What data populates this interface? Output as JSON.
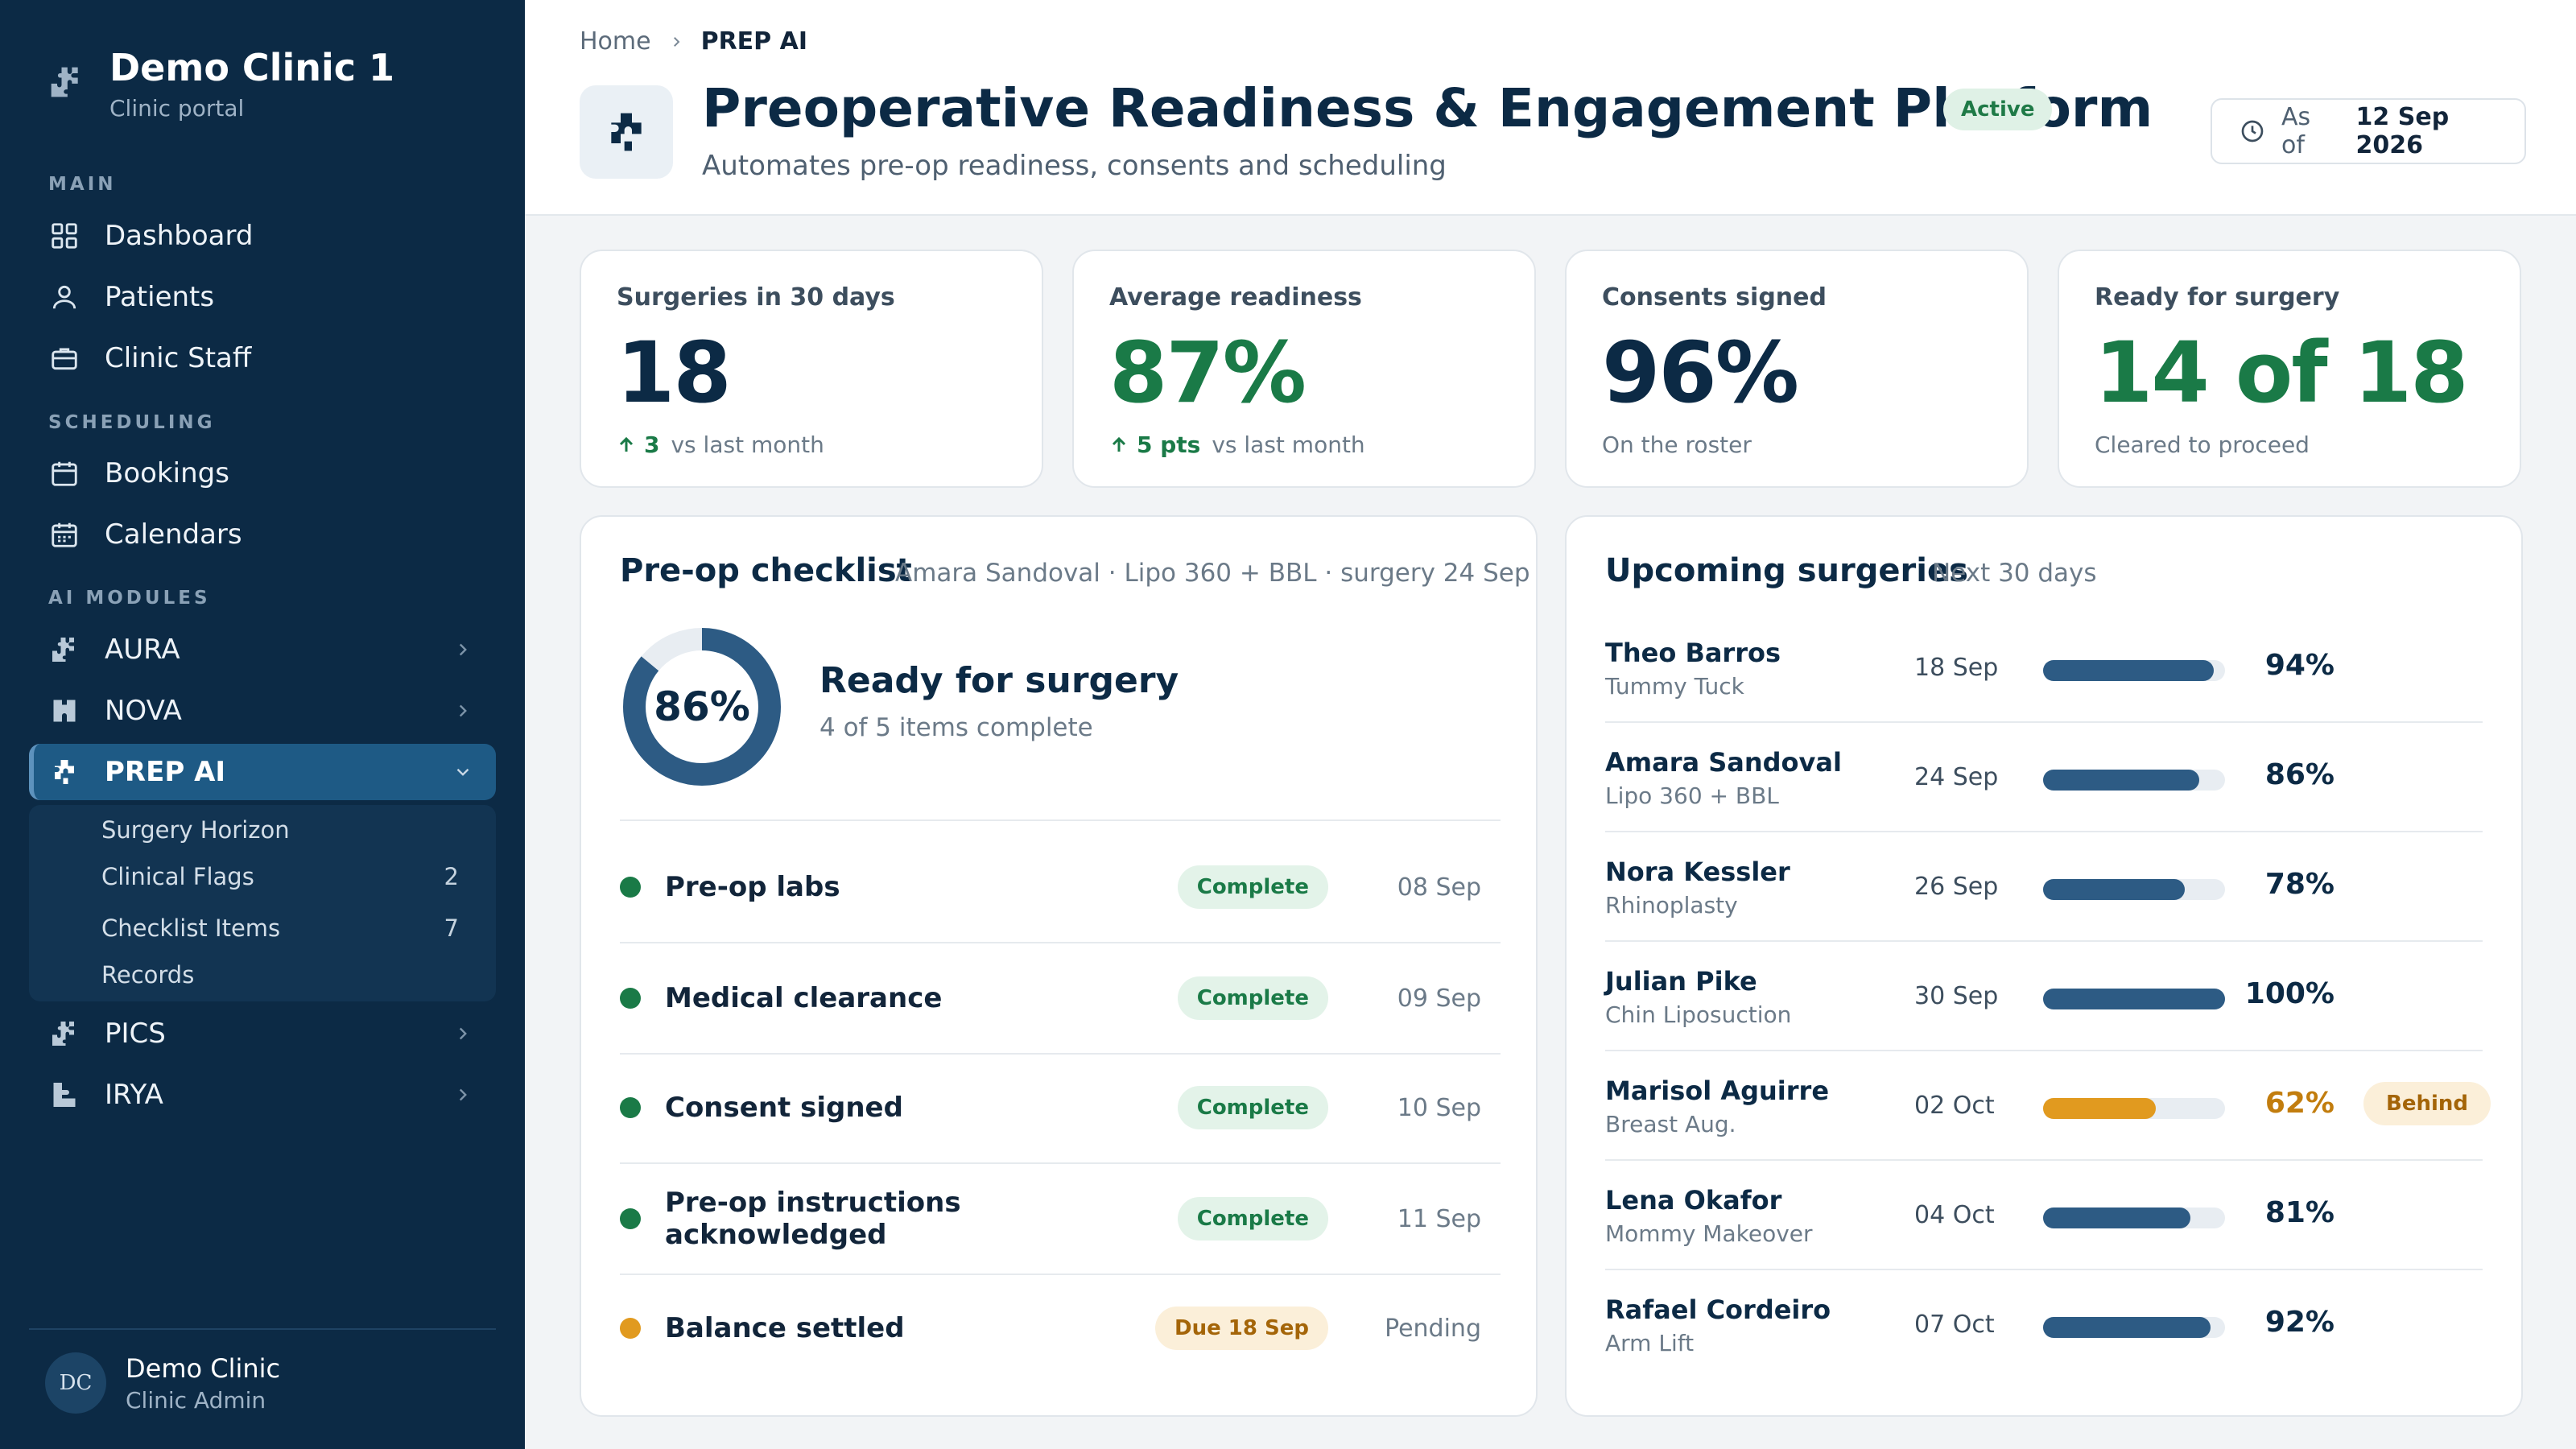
{
  "sidebar": {
    "brand_title": "Demo Clinic 1",
    "brand_sub": "Clinic portal",
    "sections": {
      "main": "MAIN",
      "scheduling": "SCHEDULING",
      "ai": "AI MODULES"
    },
    "items": {
      "dashboard": "Dashboard",
      "patients": "Patients",
      "staff": "Clinic Staff",
      "bookings": "Bookings",
      "calendars": "Calendars",
      "aura": "AURA",
      "nova": "NOVA",
      "prep": "PREP AI",
      "pics": "PICS",
      "irya": "IRYA"
    },
    "sub_items": [
      {
        "label": "Surgery Horizon",
        "count": ""
      },
      {
        "label": "Clinical Flags",
        "count": "2"
      },
      {
        "label": "Checklist Items",
        "count": "7"
      },
      {
        "label": "Records",
        "count": ""
      }
    ],
    "user": {
      "initials": "DC",
      "name": "Demo Clinic",
      "role": "Clinic Admin"
    }
  },
  "header": {
    "breadcrumb_home": "Home",
    "breadcrumb_current": "PREP AI",
    "title": "Preoperative Readiness & Engagement Platform",
    "badge": "Active",
    "subtitle": "Automates pre-op readiness, consents and scheduling",
    "asof_label": "As of",
    "asof_date": "12 Sep 2026"
  },
  "stats": [
    {
      "label": "Surgeries in 30 days",
      "value": "18",
      "delta": "3",
      "foot": "vs last month"
    },
    {
      "label": "Average readiness",
      "value": "87%",
      "delta": "5 pts",
      "foot": "vs last month"
    },
    {
      "label": "Consents signed",
      "value": "96%",
      "delta": "",
      "foot": "On the roster"
    },
    {
      "label": "Ready for surgery",
      "value": "14 of 18",
      "delta": "",
      "foot": "Cleared to proceed"
    }
  ],
  "checklist": {
    "title": "Pre-op checklist",
    "context": "Amara Sandoval · Lipo 360 + BBL · surgery 24 Sep",
    "progress": 0.86,
    "progress_text": "86%",
    "status_title": "Ready for surgery",
    "status_sub": "4 of 5 items complete",
    "items": [
      {
        "label": "Pre-op labs",
        "status": "Complete",
        "date": "08 Sep",
        "state": "ok"
      },
      {
        "label": "Medical clearance",
        "status": "Complete",
        "date": "09 Sep",
        "state": "ok"
      },
      {
        "label": "Consent signed",
        "status": "Complete",
        "date": "10 Sep",
        "state": "ok"
      },
      {
        "label": "Pre-op instructions acknowledged",
        "status": "Complete",
        "date": "11 Sep",
        "state": "ok"
      },
      {
        "label": "Balance settled",
        "status": "Due 18 Sep",
        "date": "Pending",
        "state": "due"
      }
    ]
  },
  "upcoming": {
    "title": "Upcoming surgeries",
    "subtitle": "Next 30 days",
    "rows": [
      {
        "name": "Theo Barros",
        "procedure": "Tummy Tuck",
        "date": "18 Sep",
        "readiness": 94,
        "pct": "94%",
        "flag": ""
      },
      {
        "name": "Amara Sandoval",
        "procedure": "Lipo 360 + BBL",
        "date": "24 Sep",
        "readiness": 86,
        "pct": "86%",
        "flag": ""
      },
      {
        "name": "Nora Kessler",
        "procedure": "Rhinoplasty",
        "date": "26 Sep",
        "readiness": 78,
        "pct": "78%",
        "flag": ""
      },
      {
        "name": "Julian Pike",
        "procedure": "Chin Liposuction",
        "date": "30 Sep",
        "readiness": 100,
        "pct": "100%",
        "flag": ""
      },
      {
        "name": "Marisol Aguirre",
        "procedure": "Breast Aug.",
        "date": "02 Oct",
        "readiness": 62,
        "pct": "62%",
        "flag": "Behind"
      },
      {
        "name": "Lena Okafor",
        "procedure": "Mommy Makeover",
        "date": "04 Oct",
        "readiness": 81,
        "pct": "81%",
        "flag": ""
      },
      {
        "name": "Rafael Cordeiro",
        "procedure": "Arm Lift",
        "date": "07 Oct",
        "readiness": 92,
        "pct": "92%",
        "flag": ""
      }
    ]
  },
  "colors": {
    "sidebar": "#0c2a45",
    "accent": "#1e5a85",
    "green": "#1a7a47",
    "amber": "#e19a1f",
    "bar": "#2d5b84"
  },
  "icons": {
    "brand": "puzzle-logo-icon",
    "dashboard": "grid-icon",
    "patients": "user-icon",
    "staff": "briefcase-icon",
    "bookings": "calendar-icon",
    "calendars": "calendar-grid-icon",
    "module": "puzzle-icon",
    "chevron": "chevron-right-icon",
    "clock": "clock-icon",
    "arrow_up": "arrow-up-icon"
  }
}
